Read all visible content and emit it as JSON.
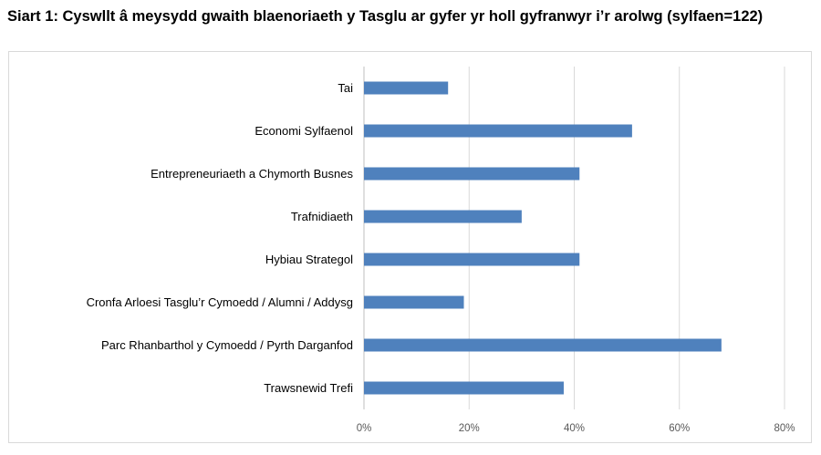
{
  "title": "Siart 1: Cyswllt â meysydd gwaith blaenoriaeth y Tasglu ar gyfer yr holl gyfranwyr i’r arolwg (sylfaen=122)",
  "chart_data": {
    "type": "bar",
    "orientation": "horizontal",
    "title": "Siart 1: Cyswllt â meysydd gwaith blaenoriaeth y Tasglu ar gyfer yr holl gyfranwyr i’r arolwg (sylfaen=122)",
    "xlabel": "",
    "ylabel": "",
    "categories": [
      "Tai",
      "Economi Sylfaenol",
      "Entrepreneuriaeth a Chymorth Busnes",
      "Trafnidiaeth",
      "Hybiau Strategol",
      "Cronfa Arloesi Tasglu’r Cymoedd / Alumni  / Addysg",
      "Parc Rhanbarthol y Cymoedd / Pyrth Darganfod",
      "Trawsnewid Trefi"
    ],
    "values": [
      16,
      51,
      41,
      30,
      41,
      19,
      68,
      38
    ],
    "unit": "%",
    "xlim": [
      0,
      80
    ],
    "ticks": [
      0,
      20,
      40,
      60,
      80
    ],
    "tick_labels": [
      "0%",
      "20%",
      "40%",
      "60%",
      "80%"
    ],
    "bar_color": "#4f81bd",
    "grid": true,
    "grid_color": "#d9d9d9",
    "legend": "none"
  }
}
